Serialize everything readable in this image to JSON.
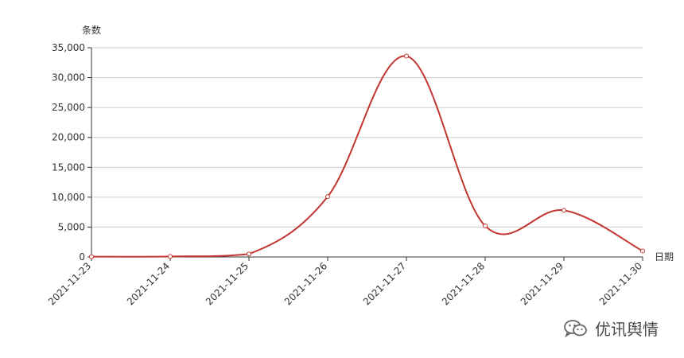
{
  "chart_data": {
    "type": "line",
    "title": "",
    "xlabel": "日期",
    "ylabel": "条数",
    "categories": [
      "2021-11-23",
      "2021-11-24",
      "2021-11-25",
      "2021-11-26",
      "2021-11-27",
      "2021-11-28",
      "2021-11-29",
      "2021-11-30"
    ],
    "series": [
      {
        "values": [
          50,
          80,
          500,
          10100,
          33600,
          5200,
          7800,
          1000
        ]
      }
    ],
    "ylim": [
      0,
      35000
    ],
    "yticks": [
      0,
      5000,
      10000,
      15000,
      20000,
      25000,
      30000,
      35000
    ],
    "ytick_labels": [
      "0",
      "5,000",
      "10,000",
      "15,000",
      "20,000",
      "25,000",
      "30,000",
      "35,000"
    ],
    "grid": true,
    "smooth": true,
    "line_color": "#c23531"
  },
  "watermark": {
    "text": "优讯舆情",
    "icon": "wechat-icon"
  }
}
